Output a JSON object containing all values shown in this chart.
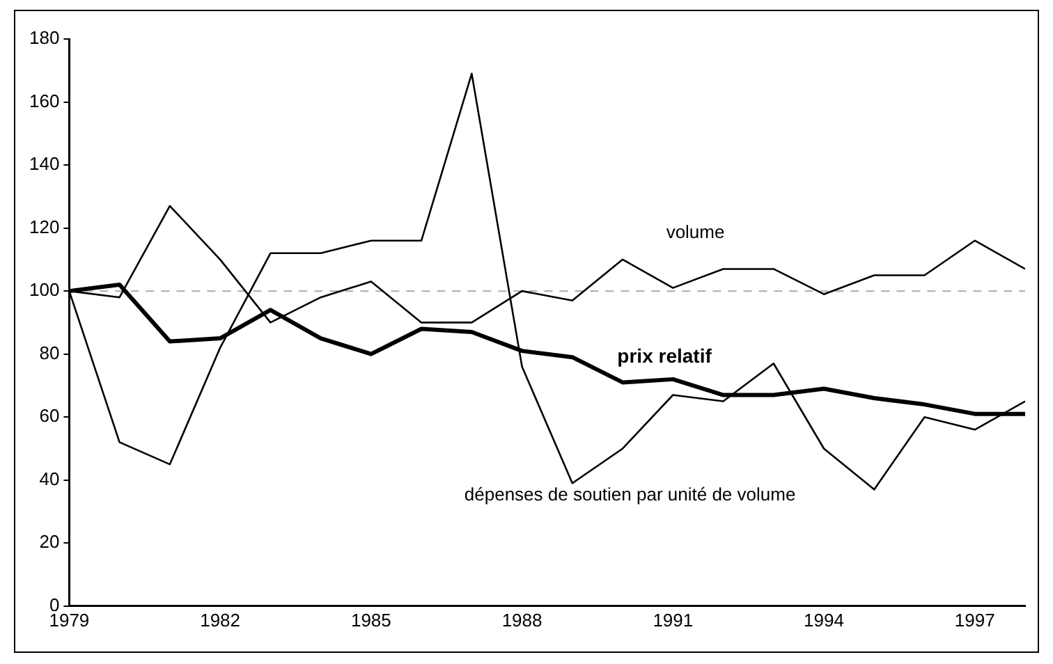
{
  "chart_data": {
    "type": "line",
    "x": [
      1979,
      1980,
      1981,
      1982,
      1983,
      1984,
      1985,
      1986,
      1987,
      1988,
      1989,
      1990,
      1991,
      1992,
      1993,
      1994,
      1995,
      1996,
      1997,
      1998
    ],
    "series": [
      {
        "name": "volume",
        "color": "#000000",
        "values": [
          100,
          98,
          127,
          110,
          90,
          98,
          103,
          90,
          90,
          100,
          97,
          110,
          101,
          107,
          107,
          99,
          105,
          105,
          116,
          107
        ]
      },
      {
        "name": "prix relatif",
        "color": "#000000",
        "values": [
          100,
          102,
          84,
          85,
          94,
          85,
          80,
          88,
          87,
          81,
          79,
          71,
          72,
          67,
          67,
          69,
          66,
          64,
          61,
          61
        ]
      },
      {
        "name": "dépenses de soutien par unité de volume",
        "color": "#000000",
        "values": [
          100,
          52,
          45,
          82,
          112,
          112,
          116,
          116,
          169,
          76,
          39,
          50,
          67,
          65,
          77,
          50,
          37,
          60,
          56,
          65
        ]
      }
    ],
    "xlim": [
      1979,
      1998
    ],
    "xticks": [
      1979,
      1982,
      1985,
      1988,
      1991,
      1994,
      1997
    ],
    "ylim": [
      0,
      180
    ],
    "yticks": [
      0,
      20,
      40,
      60,
      80,
      100,
      120,
      140,
      160,
      180
    ],
    "grid": false,
    "legend": false,
    "marker": "none",
    "line_style": "solid",
    "ref_lines": [
      {
        "axis": "y",
        "value": 100,
        "color": "#aaaaaa",
        "line_style": "dashed"
      }
    ]
  }
}
